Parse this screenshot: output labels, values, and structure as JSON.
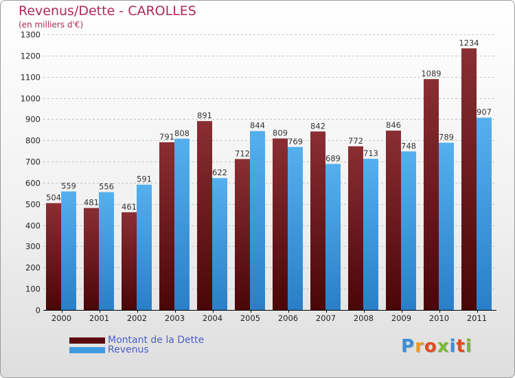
{
  "chart_data": {
    "type": "bar",
    "title": "Revenus/Dette - CAROLLES",
    "subtitle": "(en milliers d'€)",
    "xlabel": "",
    "ylabel": "",
    "ylim": [
      0,
      1300
    ],
    "yticks": [
      0,
      100,
      200,
      300,
      400,
      500,
      600,
      700,
      800,
      900,
      1000,
      1100,
      1200,
      1300
    ],
    "grid": true,
    "categories": [
      "2000",
      "2001",
      "2002",
      "2003",
      "2004",
      "2005",
      "2006",
      "2007",
      "2008",
      "2009",
      "2010",
      "2011"
    ],
    "series": [
      {
        "name": "Montant de la Dette",
        "color": "#7a1f24",
        "values": [
          504,
          481,
          461,
          791,
          891,
          712,
          809,
          842,
          772,
          846,
          1089,
          1234
        ]
      },
      {
        "name": "Revenus",
        "color": "#4aa5e6",
        "values": [
          559,
          556,
          591,
          808,
          622,
          844,
          769,
          689,
          713,
          748,
          789,
          907
        ]
      }
    ],
    "legend": {
      "position": "bottom-left"
    }
  },
  "brand": {
    "letters": [
      "P",
      "r",
      "o",
      "x",
      "i",
      "t",
      "i"
    ],
    "colors": [
      "#3b8fd6",
      "#f19a1f",
      "#e24b1e",
      "#7ab833",
      "#3b8fd6",
      "#e24b1e",
      "#7ab833"
    ]
  }
}
